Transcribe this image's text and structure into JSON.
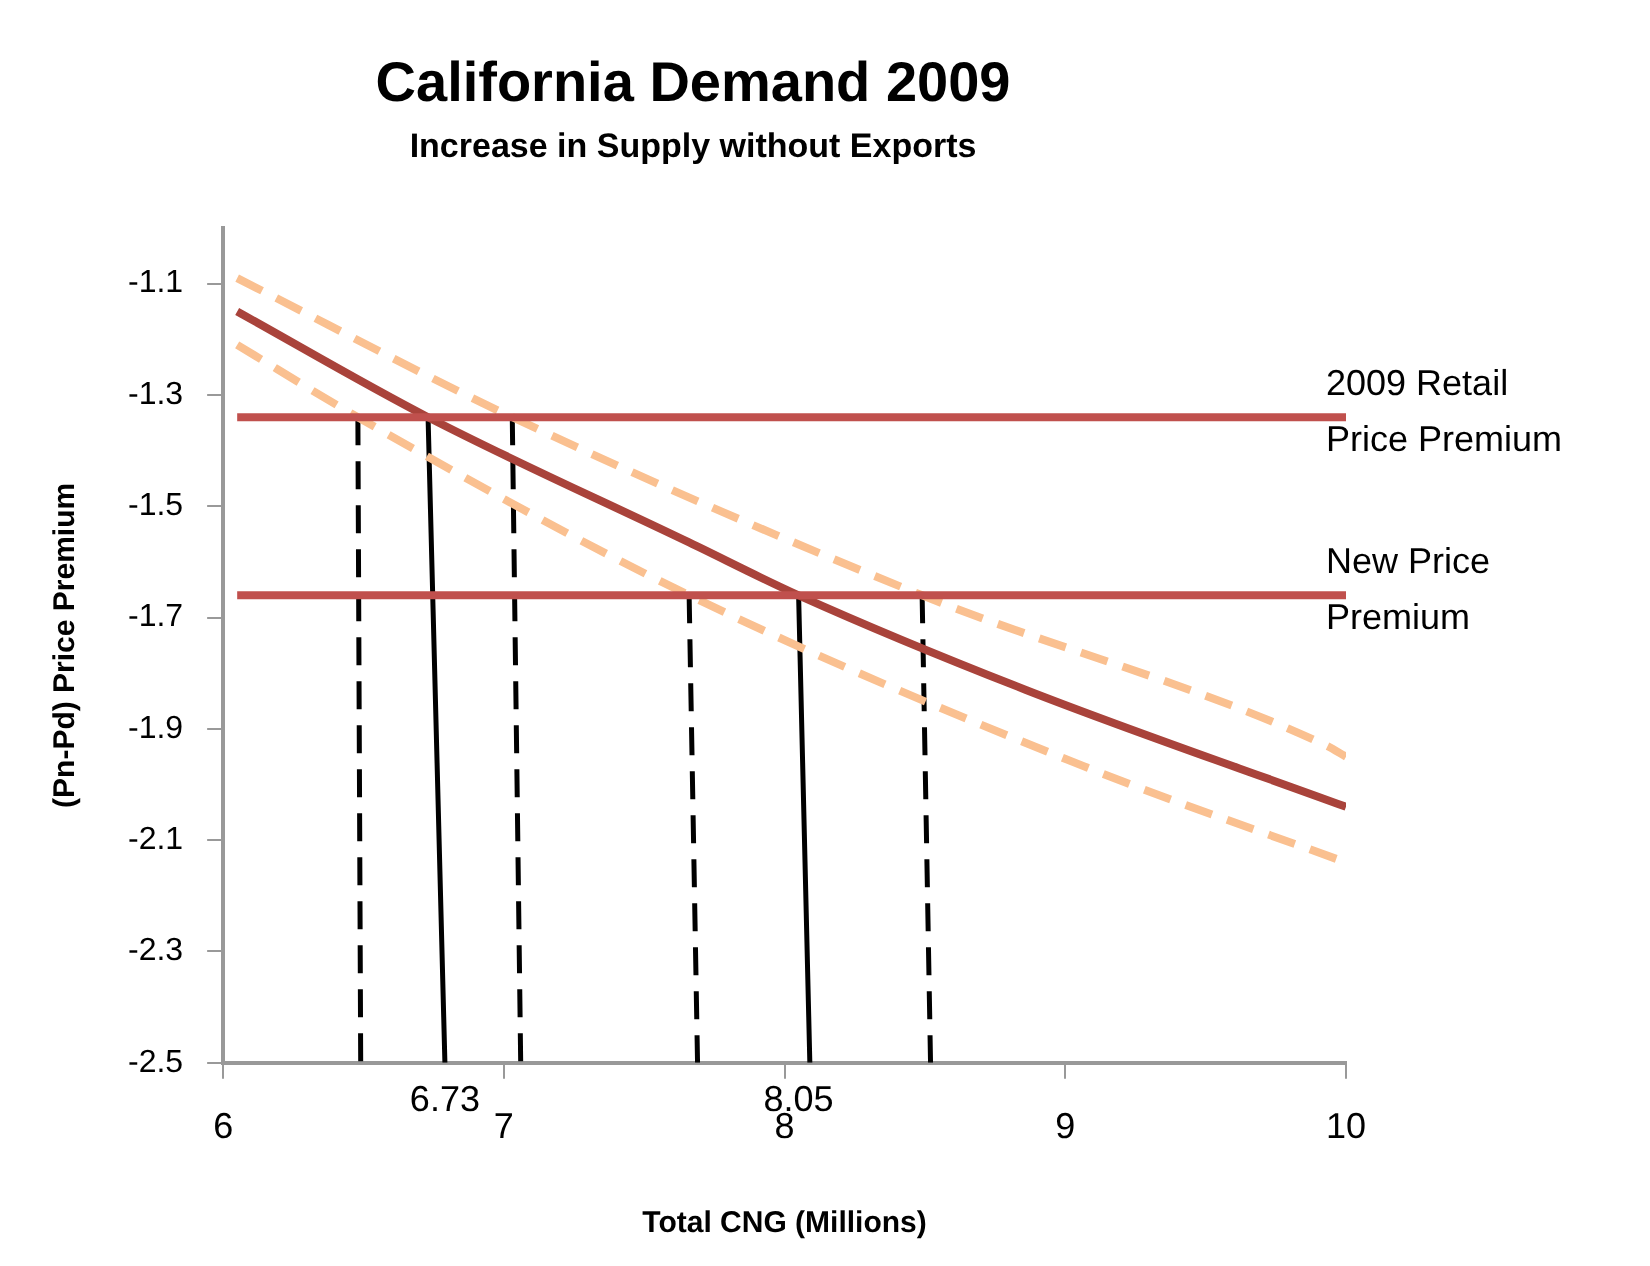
{
  "chart_data": {
    "type": "line",
    "title": "California Demand 2009",
    "subtitle": "Increase in Supply without Exports",
    "xlabel": "Total CNG (Millions)",
    "ylabel": "(Pn-Pd) Price Premium",
    "xlim": [
      6,
      10
    ],
    "xticks": [
      6,
      7,
      8,
      9,
      10
    ],
    "ylim": [
      -2.5,
      -1.0
    ],
    "yticks": [
      -2.5,
      -2.3,
      -2.1,
      -1.9,
      -1.7,
      -1.5,
      -1.3,
      -1.1
    ],
    "grid": false,
    "marker": "none",
    "series": [
      {
        "name": "2009 Retail Price Premium",
        "color": "#c0504d",
        "line_style": "solid",
        "x": [
          6.05,
          10
        ],
        "values": [
          -1.34,
          -1.34
        ]
      },
      {
        "name": "New Price Premium",
        "color": "#c0504d",
        "line_style": "solid",
        "x": [
          6.05,
          10
        ],
        "values": [
          -1.66,
          -1.66
        ]
      },
      {
        "color": "#fac090",
        "line_style": "dashed",
        "x": [
          6.05,
          7.03,
          8.49,
          9.93,
          10
        ],
        "values": [
          -1.09,
          -1.34,
          -1.66,
          -1.93,
          -1.95
        ]
      },
      {
        "color": "#fac090",
        "line_style": "dashed",
        "x": [
          6.05,
          6.48,
          7.66,
          9.08,
          10
        ],
        "values": [
          -1.21,
          -1.34,
          -1.66,
          -1.97,
          -2.14
        ]
      },
      {
        "color": "#a9433b",
        "line_style": "solid",
        "x": [
          6.05,
          6.73,
          7.66,
          8.05,
          8.86,
          10
        ],
        "values": [
          -1.15,
          -1.34,
          -1.565,
          -1.66,
          -1.83,
          -2.04
        ]
      },
      {
        "color": "#000000",
        "line_style": "dashed",
        "x": [
          6.48,
          6.49
        ],
        "values": [
          -1.34,
          -2.5
        ]
      },
      {
        "color": "#000000",
        "line_style": "solid",
        "x": [
          6.73,
          6.79
        ],
        "values": [
          -1.34,
          -2.5
        ]
      },
      {
        "color": "#000000",
        "line_style": "dashed",
        "x": [
          7.03,
          7.06
        ],
        "values": [
          -1.34,
          -2.5
        ]
      },
      {
        "color": "#000000",
        "line_style": "dashed",
        "x": [
          7.66,
          7.69
        ],
        "values": [
          -1.66,
          -2.5
        ]
      },
      {
        "color": "#000000",
        "line_style": "solid",
        "x": [
          8.05,
          8.09
        ],
        "values": [
          -1.66,
          -2.5
        ]
      },
      {
        "color": "#000000",
        "line_style": "dashed",
        "x": [
          8.49,
          8.52
        ],
        "values": [
          -1.66,
          -2.5
        ]
      }
    ],
    "annotations": [
      {
        "text": "6.73",
        "x": 6.79,
        "y": -2.5
      },
      {
        "text": "8.05",
        "x": 8.05,
        "y": -2.5
      }
    ]
  }
}
